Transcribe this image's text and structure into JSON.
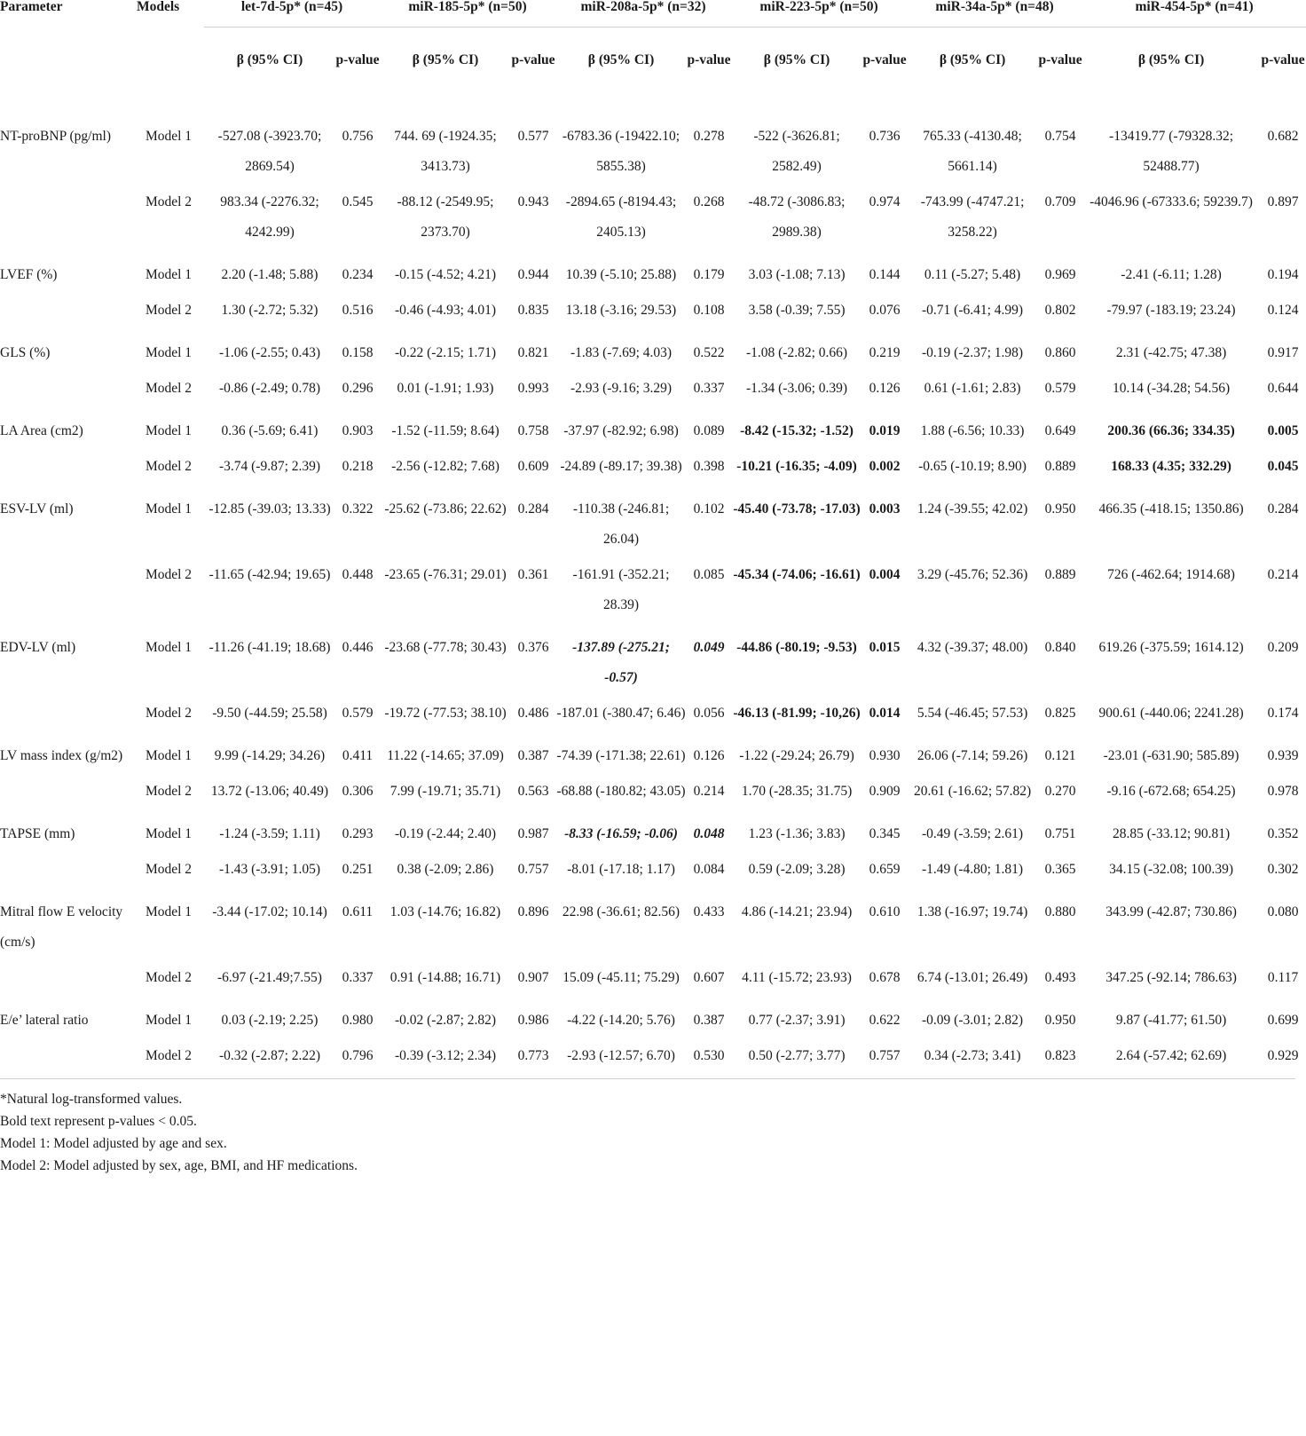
{
  "columns": {
    "parameter": "Parameter",
    "models": "Models",
    "mirnas": [
      "let-7d-5p* (n=45)",
      "miR-185-5p* (n=50)",
      "miR-208a-5p* (n=32)",
      "miR-223-5p* (n=50)",
      "miR-34a-5p* (n=48)",
      "miR-454-5p* (n=41)"
    ],
    "beta_label": "β (95% CI)",
    "p_label": "p-value"
  },
  "rows": [
    {
      "param": "NT-proBNP (pg/ml)",
      "model": "Model 1",
      "cells": [
        [
          "-527.08 (-3923.70; 2869.54)",
          "0.756"
        ],
        [
          "744. 69 (-1924.35; 3413.73)",
          "0.577"
        ],
        [
          "-6783.36 (-19422.10; 5855.38)",
          "0.278"
        ],
        [
          "-522 (-3626.81; 2582.49)",
          "0.736"
        ],
        [
          "765.33 (-4130.48; 5661.14)",
          "0.754"
        ],
        [
          "-13419.77 (-79328.32; 52488.77)",
          "0.682"
        ]
      ]
    },
    {
      "param": "",
      "model": "Model 2",
      "cells": [
        [
          "983.34 (-2276.32; 4242.99)",
          "0.545"
        ],
        [
          "-88.12 (-2549.95; 2373.70)",
          "0.943"
        ],
        [
          "-2894.65 (-8194.43; 2405.13)",
          "0.268"
        ],
        [
          "-48.72 (-3086.83; 2989.38)",
          "0.974"
        ],
        [
          "-743.99 (-4747.21; 3258.22)",
          "0.709"
        ],
        [
          "-4046.96 (-67333.6; 59239.7)",
          "0.897"
        ]
      ]
    },
    {
      "param": "LVEF (%)",
      "model": "Model 1",
      "cells": [
        [
          "2.20 (-1.48; 5.88)",
          "0.234"
        ],
        [
          "-0.15 (-4.52; 4.21)",
          "0.944"
        ],
        [
          "10.39 (-5.10; 25.88)",
          "0.179"
        ],
        [
          "3.03 (-1.08; 7.13)",
          "0.144"
        ],
        [
          "0.11 (-5.27; 5.48)",
          "0.969"
        ],
        [
          "-2.41 (-6.11; 1.28)",
          "0.194"
        ]
      ]
    },
    {
      "param": "",
      "model": "Model 2",
      "cells": [
        [
          "1.30 (-2.72; 5.32)",
          "0.516"
        ],
        [
          "-0.46 (-4.93; 4.01)",
          "0.835"
        ],
        [
          "13.18 (-3.16; 29.53)",
          "0.108"
        ],
        [
          "3.58 (-0.39; 7.55)",
          "0.076"
        ],
        [
          "-0.71 (-6.41; 4.99)",
          "0.802"
        ],
        [
          "-79.97 (-183.19; 23.24)",
          "0.124"
        ]
      ]
    },
    {
      "param": "GLS (%)",
      "model": "Model 1",
      "cells": [
        [
          "-1.06 (-2.55; 0.43)",
          "0.158"
        ],
        [
          "-0.22 (-2.15; 1.71)",
          "0.821"
        ],
        [
          "-1.83 (-7.69; 4.03)",
          "0.522"
        ],
        [
          "-1.08 (-2.82; 0.66)",
          "0.219"
        ],
        [
          "-0.19 (-2.37; 1.98)",
          "0.860"
        ],
        [
          "2.31 (-42.75; 47.38)",
          "0.917"
        ]
      ]
    },
    {
      "param": "",
      "model": "Model 2",
      "cells": [
        [
          "-0.86 (-2.49; 0.78)",
          "0.296"
        ],
        [
          "0.01 (-1.91; 1.93)",
          "0.993"
        ],
        [
          "-2.93 (-9.16; 3.29)",
          "0.337"
        ],
        [
          "-1.34 (-3.06; 0.39)",
          "0.126"
        ],
        [
          "0.61 (-1.61; 2.83)",
          "0.579"
        ],
        [
          "10.14 (-34.28; 54.56)",
          "0.644"
        ]
      ]
    },
    {
      "param": "LA Area (cm2)",
      "model": "Model 1",
      "cells": [
        [
          "0.36 (-5.69; 6.41)",
          "0.903"
        ],
        [
          "-1.52 (-11.59; 8.64)",
          "0.758"
        ],
        [
          "-37.97 (-82.92; 6.98)",
          "0.089"
        ],
        [
          "-8.42 (-15.32; -1.52)",
          "0.019"
        ],
        [
          "1.88 (-6.56; 10.33)",
          "0.649"
        ],
        [
          "200.36 (66.36; 334.35)",
          "0.005"
        ]
      ]
    },
    {
      "param": "",
      "model": "Model 2",
      "cells": [
        [
          "-3.74 (-9.87; 2.39)",
          "0.218"
        ],
        [
          "-2.56 (-12.82; 7.68)",
          "0.609"
        ],
        [
          "-24.89 (-89.17; 39.38)",
          "0.398"
        ],
        [
          "-10.21 (-16.35; -4.09)",
          "0.002"
        ],
        [
          "-0.65 (-10.19; 8.90)",
          "0.889"
        ],
        [
          "168.33 (4.35; 332.29)",
          "0.045"
        ]
      ]
    },
    {
      "param": "ESV-LV (ml)",
      "model": "Model 1",
      "cells": [
        [
          "-12.85 (-39.03; 13.33)",
          "0.322"
        ],
        [
          "-25.62 (-73.86; 22.62)",
          "0.284"
        ],
        [
          "-110.38 (-246.81; 26.04)",
          "0.102"
        ],
        [
          "-45.40 (-73.78; -17.03)",
          "0.003"
        ],
        [
          "1.24 (-39.55; 42.02)",
          "0.950"
        ],
        [
          "466.35 (-418.15; 1350.86)",
          "0.284"
        ]
      ]
    },
    {
      "param": "",
      "model": "Model 2",
      "cells": [
        [
          "-11.65 (-42.94; 19.65)",
          "0.448"
        ],
        [
          "-23.65 (-76.31; 29.01)",
          "0.361"
        ],
        [
          "-161.91 (-352.21; 28.39)",
          "0.085"
        ],
        [
          "-45.34 (-74.06; -16.61)",
          "0.004"
        ],
        [
          "3.29 (-45.76; 52.36)",
          "0.889"
        ],
        [
          "726 (-462.64; 1914.68)",
          "0.214"
        ]
      ]
    },
    {
      "param": "EDV-LV (ml)",
      "model": "Model 1",
      "cells": [
        [
          "-11.26 (-41.19; 18.68)",
          "0.446"
        ],
        [
          "-23.68 (-77.78; 30.43)",
          "0.376"
        ],
        [
          "-137.89 (-275.21; -0.57)",
          "0.049"
        ],
        [
          "-44.86 (-80.19; -9.53)",
          "0.015"
        ],
        [
          "4.32 (-39.37; 48.00)",
          "0.840"
        ],
        [
          "619.26 (-375.59; 1614.12)",
          "0.209"
        ]
      ]
    },
    {
      "param": "",
      "model": "Model 2",
      "cells": [
        [
          "-9.50 (-44.59; 25.58)",
          "0.579"
        ],
        [
          "-19.72 (-77.53; 38.10)",
          "0.486"
        ],
        [
          "-187.01 (-380.47; 6.46)",
          "0.056"
        ],
        [
          "-46.13 (-81.99; -10,26)",
          "0.014"
        ],
        [
          "5.54 (-46.45; 57.53)",
          "0.825"
        ],
        [
          "900.61 (-440.06; 2241.28)",
          "0.174"
        ]
      ]
    },
    {
      "param": "LV mass index (g/m2)",
      "model": "Model 1",
      "cells": [
        [
          "9.99 (-14.29; 34.26)",
          "0.411"
        ],
        [
          "11.22 (-14.65; 37.09)",
          "0.387"
        ],
        [
          "-74.39 (-171.38; 22.61)",
          "0.126"
        ],
        [
          "-1.22 (-29.24; 26.79)",
          "0.930"
        ],
        [
          "26.06 (-7.14; 59.26)",
          "0.121"
        ],
        [
          "-23.01 (-631.90; 585.89)",
          "0.939"
        ]
      ]
    },
    {
      "param": "",
      "model": "Model 2",
      "cells": [
        [
          "13.72 (-13.06; 40.49)",
          "0.306"
        ],
        [
          "7.99 (-19.71; 35.71)",
          "0.563"
        ],
        [
          "-68.88 (-180.82; 43.05)",
          "0.214"
        ],
        [
          "1.70 (-28.35; 31.75)",
          "0.909"
        ],
        [
          "20.61 (-16.62; 57.82)",
          "0.270"
        ],
        [
          "-9.16 (-672.68; 654.25)",
          "0.978"
        ]
      ]
    },
    {
      "param": "TAPSE (mm)",
      "model": "Model 1",
      "cells": [
        [
          "-1.24 (-3.59; 1.11)",
          "0.293"
        ],
        [
          "-0.19 (-2.44; 2.40)",
          "0.987"
        ],
        [
          "-8.33 (-16.59; -0.06)",
          "0.048"
        ],
        [
          "1.23 (-1.36; 3.83)",
          "0.345"
        ],
        [
          "-0.49 (-3.59; 2.61)",
          "0.751"
        ],
        [
          "28.85 (-33.12; 90.81)",
          "0.352"
        ]
      ]
    },
    {
      "param": "",
      "model": "Model 2",
      "cells": [
        [
          "-1.43 (-3.91; 1.05)",
          "0.251"
        ],
        [
          "0.38 (-2.09; 2.86)",
          "0.757"
        ],
        [
          "-8.01 (-17.18; 1.17)",
          "0.084"
        ],
        [
          "0.59 (-2.09; 3.28)",
          "0.659"
        ],
        [
          "-1.49 (-4.80; 1.81)",
          "0.365"
        ],
        [
          "34.15 (-32.08; 100.39)",
          "0.302"
        ]
      ]
    },
    {
      "param": "Mitral flow E velocity (cm/s)",
      "model": "Model 1",
      "cells": [
        [
          "-3.44 (-17.02; 10.14)",
          "0.611"
        ],
        [
          "1.03 (-14.76; 16.82)",
          "0.896"
        ],
        [
          "22.98 (-36.61; 82.56)",
          "0.433"
        ],
        [
          "4.86 (-14.21; 23.94)",
          "0.610"
        ],
        [
          "1.38 (-16.97; 19.74)",
          "0.880"
        ],
        [
          "343.99 (-42.87; 730.86)",
          "0.080"
        ]
      ]
    },
    {
      "param": "",
      "model": "Model 2",
      "cells": [
        [
          "-6.97 (-21.49;7.55)",
          "0.337"
        ],
        [
          "0.91 (-14.88; 16.71)",
          "0.907"
        ],
        [
          "15.09 (-45.11; 75.29)",
          "0.607"
        ],
        [
          "4.11 (-15.72; 23.93)",
          "0.678"
        ],
        [
          "6.74 (-13.01; 26.49)",
          "0.493"
        ],
        [
          "347.25 (-92.14; 786.63)",
          "0.117"
        ]
      ]
    },
    {
      "param": "E/e’ lateral ratio",
      "model": "Model 1",
      "cells": [
        [
          "0.03 (-2.19; 2.25)",
          "0.980"
        ],
        [
          "-0.02 (-2.87; 2.82)",
          "0.986"
        ],
        [
          "-4.22 (-14.20; 5.76)",
          "0.387"
        ],
        [
          "0.77 (-2.37; 3.91)",
          "0.622"
        ],
        [
          "-0.09 (-3.01; 2.82)",
          "0.950"
        ],
        [
          "9.87 (-41.77; 61.50)",
          "0.699"
        ]
      ]
    },
    {
      "param": "",
      "model": "Model 2",
      "cells": [
        [
          "-0.32 (-2.87; 2.22)",
          "0.796"
        ],
        [
          "-0.39 (-3.12; 2.34)",
          "0.773"
        ],
        [
          "-2.93 (-12.57; 6.70)",
          "0.530"
        ],
        [
          "0.50 (-2.77; 3.77)",
          "0.757"
        ],
        [
          "0.34 (-2.73; 3.41)",
          "0.823"
        ],
        [
          "2.64 (-57.42; 62.69)",
          "0.929"
        ]
      ]
    }
  ],
  "bold_cells": [
    [
      6,
      3
    ],
    [
      6,
      5
    ],
    [
      7,
      3
    ],
    [
      7,
      5
    ],
    [
      8,
      3
    ],
    [
      9,
      3
    ],
    [
      10,
      3
    ],
    [
      11,
      3
    ]
  ],
  "bold_italic_cells": [
    [
      10,
      2
    ],
    [
      14,
      2
    ]
  ],
  "footnotes": [
    "*Natural log-transformed values.",
    "Bold text represent p-values < 0.05.",
    "Model 1: Model adjusted by age and sex.",
    "Model 2: Model adjusted by sex, age, BMI, and HF medications."
  ]
}
